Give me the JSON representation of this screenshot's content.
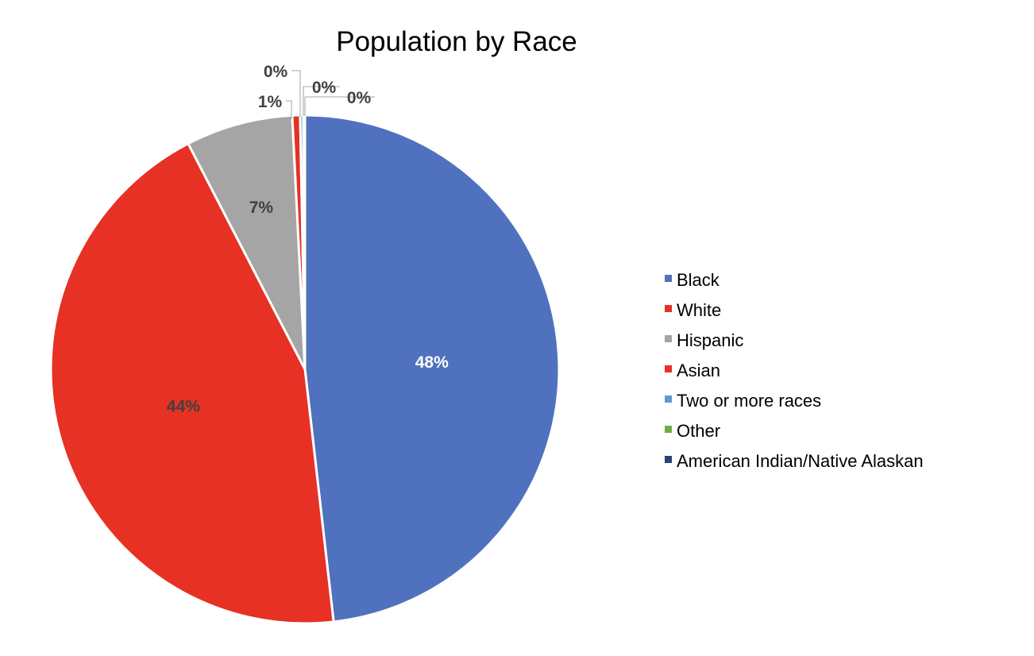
{
  "chart_data": {
    "type": "pie",
    "title": "Population by Race",
    "categories": [
      "Black",
      "White",
      "Hispanic",
      "Asian",
      "Two or more races",
      "Other",
      "American Indian/Native Alaskan"
    ],
    "values": [
      48.2,
      44.2,
      6.8,
      0.5,
      0.2,
      0.05,
      0.05
    ],
    "data_labels": [
      "48%",
      "44%",
      "7%",
      "1%",
      "0%",
      "0%",
      "0%"
    ],
    "colors": [
      "#5072BE",
      "#E63124",
      "#A5A5A5",
      "#E63124",
      "#5B9BD5",
      "#70AD47",
      "#264478"
    ],
    "label_colors": [
      "#FFFFFF",
      "#404040",
      "#404040",
      "#404040",
      "#404040",
      "#404040",
      "#404040"
    ],
    "legend_position": "right"
  }
}
